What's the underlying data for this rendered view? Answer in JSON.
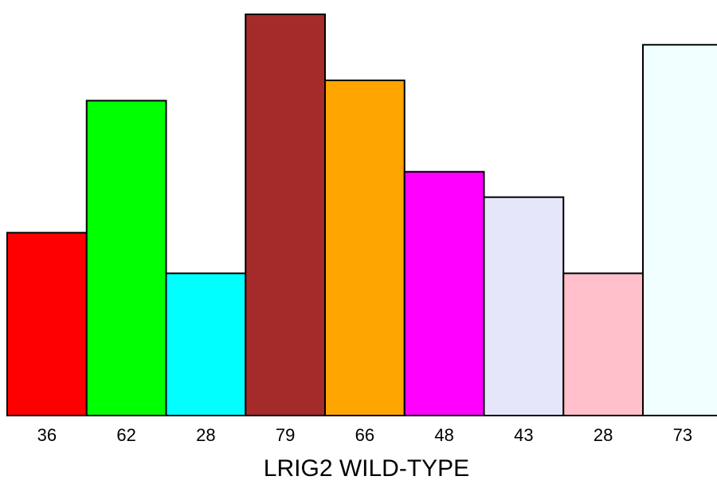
{
  "chart_data": {
    "type": "bar",
    "categories": [
      "36",
      "62",
      "28",
      "79",
      "66",
      "48",
      "43",
      "28",
      "73"
    ],
    "values": [
      36,
      62,
      28,
      79,
      66,
      48,
      43,
      28,
      73
    ],
    "colors": [
      "#ff0000",
      "#00ff00",
      "#00ffff",
      "#a52a2a",
      "#ffa500",
      "#ff00ff",
      "#e6e6fa",
      "#ffc0cb",
      "#f0ffff"
    ],
    "xlabel": "LRIG2 WILD-TYPE",
    "ylabel": "",
    "ylim": [
      0,
      79
    ],
    "grid": false
  }
}
